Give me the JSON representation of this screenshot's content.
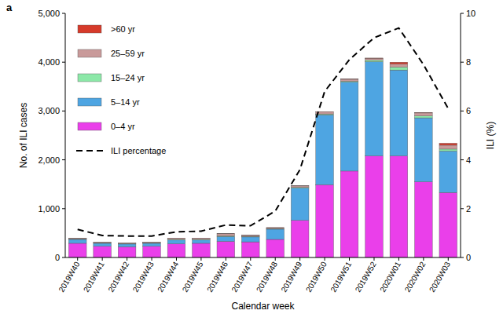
{
  "chart_data": {
    "type": "bar",
    "title": "a",
    "x_label": "Calendar week",
    "y_label": "No. of ILI cases",
    "y2_label": "ILI (%)",
    "stacked": true,
    "legend": "upper left",
    "categories": [
      "2019W40",
      "2019W41",
      "2019W42",
      "2019W43",
      "2019W44",
      "2019W45",
      "2019W46",
      "2019W47",
      "2019W48",
      "2019W49",
      "2019W50",
      "2019W51",
      "2019W52",
      "2020W01",
      "2020W02",
      "2020W03"
    ],
    "series": [
      {
        "name": "0–4 yr",
        "type": "bar",
        "color": "#ea3fea",
        "values": [
          290,
          230,
          220,
          230,
          280,
          290,
          330,
          320,
          370,
          760,
          1490,
          1770,
          2080,
          2080,
          1550,
          1330
        ]
      },
      {
        "name": "5–14 yr",
        "type": "bar",
        "color": "#4ea5e2",
        "values": [
          80,
          60,
          55,
          60,
          80,
          70,
          100,
          100,
          210,
          660,
          1430,
          1820,
          1930,
          1760,
          1310,
          850
        ]
      },
      {
        "name": "15–24 yr",
        "type": "bar",
        "color": "#8ce8a8",
        "values": [
          10,
          8,
          8,
          8,
          10,
          10,
          15,
          12,
          10,
          15,
          20,
          20,
          30,
          60,
          40,
          40
        ]
      },
      {
        "name": "25–59 yr",
        "type": "bar",
        "color": "#c99a9a",
        "values": [
          15,
          15,
          12,
          15,
          20,
          20,
          40,
          20,
          20,
          30,
          40,
          40,
          40,
          60,
          60,
          80
        ]
      },
      {
        "name": ">60 yr",
        "type": "bar",
        "color": "#d63a2a",
        "values": [
          3,
          2,
          2,
          2,
          3,
          3,
          5,
          3,
          3,
          5,
          5,
          5,
          5,
          40,
          10,
          40
        ]
      },
      {
        "name": "ILI percentage",
        "type": "line",
        "axis": "y2",
        "color": "#000000",
        "line_style": "dashed",
        "values": [
          1.15,
          0.9,
          0.88,
          0.88,
          1.05,
          1.08,
          1.33,
          1.3,
          1.9,
          3.6,
          6.8,
          8.1,
          9.0,
          9.4,
          7.9,
          6.1
        ]
      }
    ],
    "ylim": [
      0,
      5000
    ],
    "yticks": [
      0,
      {
        "value": 1000,
        "label": "1,000"
      },
      {
        "value": 2000,
        "label": "2,000"
      },
      {
        "value": 3000,
        "label": "3,000"
      },
      {
        "value": 4000,
        "label": "4,000"
      },
      {
        "value": 5000,
        "label": "5,000"
      }
    ],
    "y2lim": [
      0,
      10
    ],
    "y2ticks": [
      0,
      2,
      4,
      6,
      8,
      10
    ]
  }
}
